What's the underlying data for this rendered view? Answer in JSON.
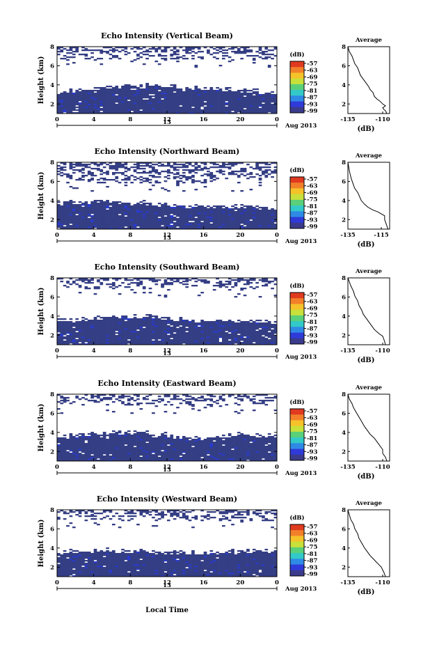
{
  "chart_data": [
    {
      "type": "heatmap",
      "title": "Echo Intensity (Vertical Beam)",
      "ylabel": "Height (km)",
      "x_ticks": [
        "0",
        "4",
        "8",
        "12",
        "16",
        "20",
        "0"
      ],
      "date_day": "13",
      "date_month": "Aug 2013",
      "xlim": [
        0,
        24
      ],
      "ylim": [
        1,
        8
      ],
      "y_ticks": [
        "2",
        "4",
        "6",
        "8"
      ],
      "colorbar": {
        "unit": "(dB)",
        "ticks": [
          "-57",
          "-63",
          "-69",
          "-75",
          "-81",
          "-87",
          "-93",
          "-99"
        ]
      },
      "layers": {
        "low_dense_top_km": [
          3.0,
          3.6,
          3.8,
          3.6,
          3.3,
          3.1
        ],
        "sparse_band_km": [
          6.6,
          8.0
        ]
      },
      "average": {
        "title": "Average",
        "xlabel": "(dB)",
        "x_ticks": [
          "-135",
          "-110"
        ],
        "y_ticks": [
          "2",
          "4",
          "6",
          "8"
        ],
        "xlim": [
          -135,
          -105
        ],
        "profile": [
          [
            -107,
            1.0
          ],
          [
            -108,
            1.3
          ],
          [
            -109,
            1.4
          ],
          [
            -110,
            1.6
          ],
          [
            -108,
            1.8
          ],
          [
            -110,
            2.0
          ],
          [
            -112,
            2.3
          ],
          [
            -114,
            2.5
          ],
          [
            -116,
            2.8
          ],
          [
            -117,
            3.2
          ],
          [
            -119,
            3.5
          ],
          [
            -120,
            3.8
          ],
          [
            -122,
            4.2
          ],
          [
            -124,
            4.6
          ],
          [
            -126,
            5.0
          ],
          [
            -127,
            5.4
          ],
          [
            -128,
            5.8
          ],
          [
            -130,
            6.2
          ],
          [
            -131,
            6.6
          ],
          [
            -132,
            7.0
          ],
          [
            -134,
            7.5
          ],
          [
            -135,
            8.0
          ]
        ]
      }
    },
    {
      "type": "heatmap",
      "title": "Echo Intensity (Northward Beam)",
      "ylabel": "Height (km)",
      "x_ticks": [
        "0",
        "4",
        "8",
        "12",
        "16",
        "20",
        "0"
      ],
      "date_day": "13",
      "date_month": "Aug 2013",
      "xlim": [
        0,
        24
      ],
      "ylim": [
        1,
        8
      ],
      "y_ticks": [
        "2",
        "4",
        "6",
        "8"
      ],
      "colorbar": {
        "unit": "(dB)",
        "ticks": [
          "-57",
          "-63",
          "-69",
          "-75",
          "-81",
          "-87",
          "-93",
          "-99"
        ]
      },
      "layers": {
        "low_dense_top_km": [
          3.6,
          3.8,
          3.6,
          3.3,
          3.2,
          3.1
        ],
        "sparse_band_km": [
          5.8,
          8.0
        ]
      },
      "average": {
        "title": "Average",
        "xlabel": "(dB)",
        "x_ticks": [
          "-135",
          "-115"
        ],
        "y_ticks": [
          "2",
          "4",
          "6",
          "8"
        ],
        "xlim": [
          -135,
          -110
        ],
        "profile": [
          [
            -111,
            1.0
          ],
          [
            -112,
            1.5
          ],
          [
            -113,
            2.0
          ],
          [
            -113,
            2.4
          ],
          [
            -115,
            2.6
          ],
          [
            -117,
            2.8
          ],
          [
            -120,
            3.0
          ],
          [
            -123,
            3.3
          ],
          [
            -125,
            3.6
          ],
          [
            -127,
            4.0
          ],
          [
            -128,
            4.4
          ],
          [
            -129,
            4.8
          ],
          [
            -131,
            5.3
          ],
          [
            -132,
            5.8
          ],
          [
            -133,
            6.3
          ],
          [
            -134,
            7.0
          ],
          [
            -135,
            8.0
          ]
        ]
      }
    },
    {
      "type": "heatmap",
      "title": "Echo Intensity (Southward Beam)",
      "ylabel": "Height (km)",
      "x_ticks": [
        "0",
        "4",
        "8",
        "12",
        "16",
        "20",
        "0"
      ],
      "date_day": "13",
      "date_month": "Aug 2013",
      "xlim": [
        0,
        24
      ],
      "ylim": [
        1,
        8
      ],
      "y_ticks": [
        "2",
        "4",
        "6",
        "8"
      ],
      "colorbar": {
        "unit": "(dB)",
        "ticks": [
          "-57",
          "-63",
          "-69",
          "-75",
          "-81",
          "-87",
          "-93",
          "-99"
        ]
      },
      "layers": {
        "low_dense_top_km": [
          3.4,
          3.7,
          3.9,
          3.5,
          3.4,
          3.3
        ],
        "sparse_band_km": [
          6.8,
          8.0
        ]
      },
      "average": {
        "title": "Average",
        "xlabel": "(dB)",
        "x_ticks": [
          "-135",
          "-110"
        ],
        "y_ticks": [
          "2",
          "4",
          "6",
          "8"
        ],
        "xlim": [
          -135,
          -105
        ],
        "profile": [
          [
            -108,
            1.0
          ],
          [
            -109,
            1.5
          ],
          [
            -110,
            1.9
          ],
          [
            -113,
            2.2
          ],
          [
            -116,
            2.6
          ],
          [
            -118,
            3.0
          ],
          [
            -120,
            3.4
          ],
          [
            -122,
            3.8
          ],
          [
            -124,
            4.2
          ],
          [
            -125,
            4.6
          ],
          [
            -127,
            5.1
          ],
          [
            -128,
            5.6
          ],
          [
            -130,
            6.1
          ],
          [
            -131,
            6.6
          ],
          [
            -133,
            7.2
          ],
          [
            -134,
            7.6
          ],
          [
            -135,
            8.0
          ]
        ]
      }
    },
    {
      "type": "heatmap",
      "title": "Echo Intensity (Eastward Beam)",
      "ylabel": "Height (km)",
      "x_ticks": [
        "0",
        "4",
        "8",
        "12",
        "16",
        "20",
        "0"
      ],
      "date_day": "13",
      "date_month": "Aug 2013",
      "xlim": [
        0,
        24
      ],
      "ylim": [
        1,
        8
      ],
      "y_ticks": [
        "2",
        "4",
        "6",
        "8"
      ],
      "colorbar": {
        "unit": "(dB)",
        "ticks": [
          "-57",
          "-63",
          "-69",
          "-75",
          "-81",
          "-87",
          "-93",
          "-99"
        ]
      },
      "layers": {
        "low_dense_top_km": [
          3.4,
          3.8,
          3.9,
          3.2,
          3.6,
          3.5
        ],
        "sparse_band_km": [
          6.8,
          8.0
        ]
      },
      "average": {
        "title": "Average",
        "xlabel": "(dB)",
        "x_ticks": [
          "-135",
          "-110"
        ],
        "y_ticks": [
          "2",
          "4",
          "6",
          "8"
        ],
        "xlim": [
          -135,
          -105
        ],
        "profile": [
          [
            -107,
            1.0
          ],
          [
            -108,
            1.4
          ],
          [
            -110,
            1.8
          ],
          [
            -110,
            2.2
          ],
          [
            -112,
            2.6
          ],
          [
            -114,
            3.0
          ],
          [
            -116,
            3.4
          ],
          [
            -119,
            3.8
          ],
          [
            -121,
            4.2
          ],
          [
            -123,
            4.6
          ],
          [
            -125,
            5.1
          ],
          [
            -127,
            5.6
          ],
          [
            -129,
            6.1
          ],
          [
            -131,
            6.6
          ],
          [
            -132,
            7.0
          ],
          [
            -134,
            7.5
          ],
          [
            -135,
            8.0
          ]
        ]
      }
    },
    {
      "type": "heatmap",
      "title": "Echo Intensity (Westward Beam)",
      "ylabel": "Height (km)",
      "x_ticks": [
        "0",
        "4",
        "8",
        "12",
        "16",
        "20",
        "0"
      ],
      "date_day": "13",
      "date_month": "Aug 2013",
      "xlim": [
        0,
        24
      ],
      "ylim": [
        1,
        8
      ],
      "y_ticks": [
        "2",
        "4",
        "6",
        "8"
      ],
      "colorbar": {
        "unit": "(dB)",
        "ticks": [
          "-57",
          "-63",
          "-69",
          "-75",
          "-81",
          "-87",
          "-93",
          "-99"
        ]
      },
      "layers": {
        "low_dense_top_km": [
          3.4,
          3.6,
          3.5,
          3.3,
          3.5,
          3.5
        ],
        "sparse_band_km": [
          6.9,
          8.0
        ]
      },
      "average": {
        "title": "Average",
        "xlabel": "(dB)",
        "x_ticks": [
          "-135",
          "-110"
        ],
        "y_ticks": [
          "2",
          "4",
          "6",
          "8"
        ],
        "xlim": [
          -135,
          -105
        ],
        "profile": [
          [
            -108,
            1.0
          ],
          [
            -109,
            1.4
          ],
          [
            -110,
            1.7
          ],
          [
            -111,
            2.0
          ],
          [
            -113,
            2.3
          ],
          [
            -115,
            2.6
          ],
          [
            -117,
            2.9
          ],
          [
            -119,
            3.2
          ],
          [
            -121,
            3.6
          ],
          [
            -123,
            4.0
          ],
          [
            -125,
            4.5
          ],
          [
            -127,
            5.0
          ],
          [
            -128,
            5.5
          ],
          [
            -130,
            6.0
          ],
          [
            -131,
            6.5
          ],
          [
            -133,
            7.0
          ],
          [
            -134,
            7.5
          ],
          [
            -135,
            8.0
          ]
        ]
      }
    }
  ],
  "common_xlabel": "Local Time",
  "colors": {
    "dense": "#343e84",
    "blue": "#2a3bd0",
    "bar": [
      "#e03a1f",
      "#f2802a",
      "#f5c22a",
      "#c8e03a",
      "#5ad07a",
      "#33c9c8",
      "#2f8ae6",
      "#2f3ad8",
      "#3b3b8c"
    ]
  }
}
